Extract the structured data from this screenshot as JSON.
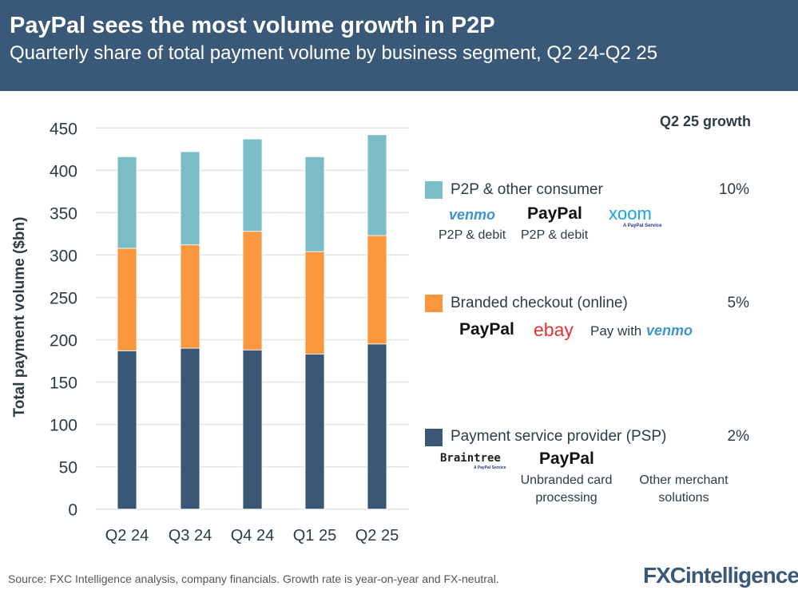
{
  "header": {
    "title": "PayPal sees the most volume growth in P2P",
    "subtitle": "Quarterly share of total payment volume by business segment, Q2 24-Q2 25"
  },
  "chart_data": {
    "type": "bar",
    "stacked": true,
    "categories": [
      "Q2 24",
      "Q3 24",
      "Q4 24",
      "Q1 25",
      "Q2 25"
    ],
    "ylabel": "Total payment volume ($bn)",
    "ylim": [
      0,
      450
    ],
    "yticks": [
      0,
      50,
      100,
      150,
      200,
      250,
      300,
      350,
      400,
      450
    ],
    "grid": true,
    "legend": "right",
    "series": [
      {
        "name": "Payment service provider (PSP)",
        "color": "#3a5876",
        "values": [
          187,
          190,
          188,
          183,
          195
        ]
      },
      {
        "name": "Branded checkout (online)",
        "color": "#f9973e",
        "values": [
          121,
          122,
          140,
          121,
          128
        ]
      },
      {
        "name": "P2P & other consumer",
        "color": "#7bbdc6",
        "values": [
          108,
          110,
          109,
          112,
          119
        ]
      }
    ]
  },
  "legend": {
    "growth_title": "Q2 25 growth",
    "p2p": {
      "label": "P2P & other consumer",
      "growth": "10%",
      "logos": [
        "venmo",
        "PayPal",
        "xoom"
      ],
      "logo_sub": "A PayPal Service",
      "captions": [
        "P2P & debit",
        "P2P & debit"
      ]
    },
    "branded": {
      "label": "Branded checkout (online)",
      "growth": "5%",
      "logos": [
        "PayPal",
        "ebay",
        "venmo"
      ],
      "pay_with": "Pay with"
    },
    "psp": {
      "label": "Payment service provider (PSP)",
      "growth": "2%",
      "logos": [
        "Braintree",
        "PayPal"
      ],
      "logo_sub": "A PayPal Service",
      "captions": [
        "Unbranded card processing",
        "Other merchant solutions"
      ]
    }
  },
  "footer": {
    "source": "Source: FXC Intelligence analysis, company financials. Growth rate is year-on-year and FX-neutral.",
    "brand": "FXCintelligence"
  }
}
